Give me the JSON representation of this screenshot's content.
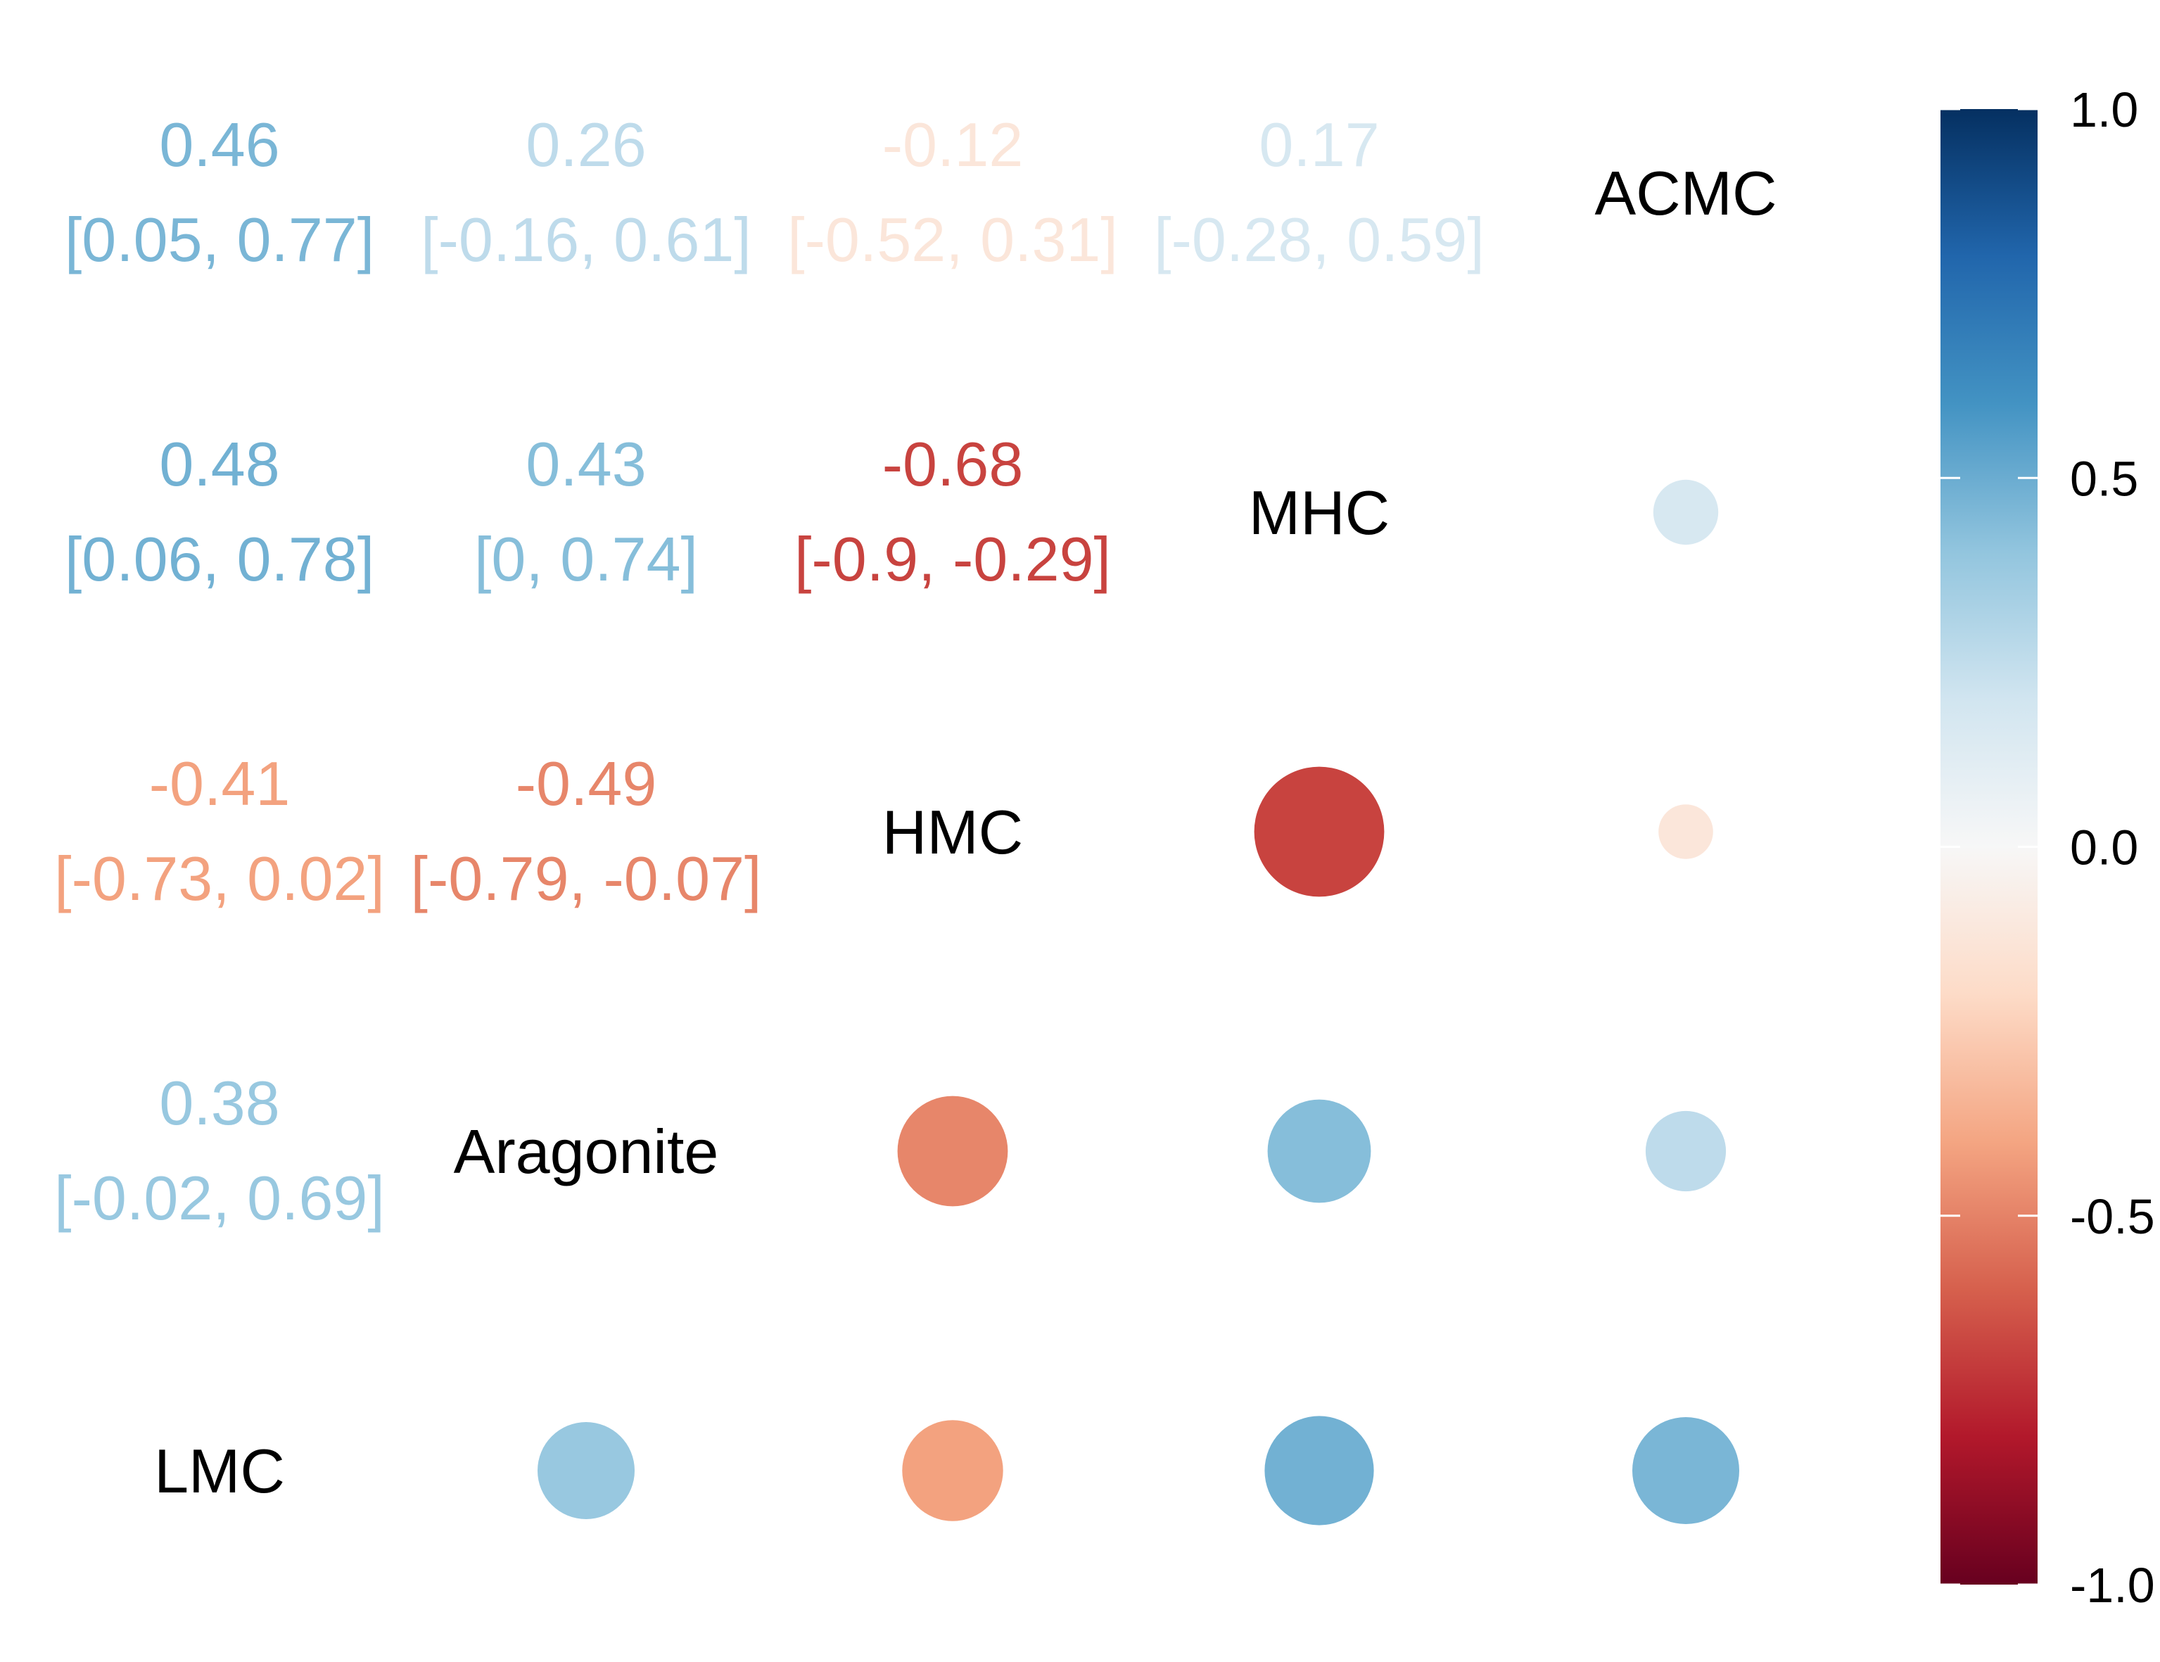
{
  "chart_data": {
    "type": "heatmap",
    "variables": [
      "LMC",
      "Aragonite",
      "HMC",
      "MHC",
      "ACMC"
    ],
    "upper_display": "circle",
    "lower_display": "number",
    "title": "",
    "matrix": [
      {
        "row": "ACMC",
        "col": "LMC",
        "r": 0.46,
        "r_label": "0.46",
        "ci_label": "[0.05, 0.77]"
      },
      {
        "row": "ACMC",
        "col": "Aragonite",
        "r": 0.26,
        "r_label": "0.26",
        "ci_label": "[-0.16, 0.61]"
      },
      {
        "row": "ACMC",
        "col": "HMC",
        "r": -0.12,
        "r_label": "-0.12",
        "ci_label": "[-0.52, 0.31]"
      },
      {
        "row": "ACMC",
        "col": "MHC",
        "r": 0.17,
        "r_label": "0.17",
        "ci_label": "[-0.28, 0.59]"
      },
      {
        "row": "MHC",
        "col": "LMC",
        "r": 0.48,
        "r_label": "0.48",
        "ci_label": "[0.06, 0.78]"
      },
      {
        "row": "MHC",
        "col": "Aragonite",
        "r": 0.43,
        "r_label": "0.43",
        "ci_label": "[0, 0.74]"
      },
      {
        "row": "MHC",
        "col": "HMC",
        "r": -0.68,
        "r_label": "-0.68",
        "ci_label": "[-0.9, -0.29]"
      },
      {
        "row": "HMC",
        "col": "LMC",
        "r": -0.41,
        "r_label": "-0.41",
        "ci_label": "[-0.73, 0.02]"
      },
      {
        "row": "HMC",
        "col": "Aragonite",
        "r": -0.49,
        "r_label": "-0.49",
        "ci_label": "[-0.79, -0.07]"
      },
      {
        "row": "Aragonite",
        "col": "LMC",
        "r": 0.38,
        "r_label": "0.38",
        "ci_label": "[-0.02, 0.69]"
      }
    ],
    "colorbar": {
      "range": [
        -1,
        1
      ],
      "ticks": [
        1.0,
        0.5,
        0.0,
        -0.5,
        -1.0
      ],
      "tick_labels": [
        "1.0",
        "0.5",
        "0.0",
        "-0.5",
        "-1.0"
      ],
      "colors": [
        "#67001F",
        "#B2182B",
        "#D6604D",
        "#F4A582",
        "#FDDBC7",
        "#F7F7F7",
        "#D1E5F0",
        "#92C5DE",
        "#4393C3",
        "#2166AC",
        "#053061"
      ]
    }
  }
}
